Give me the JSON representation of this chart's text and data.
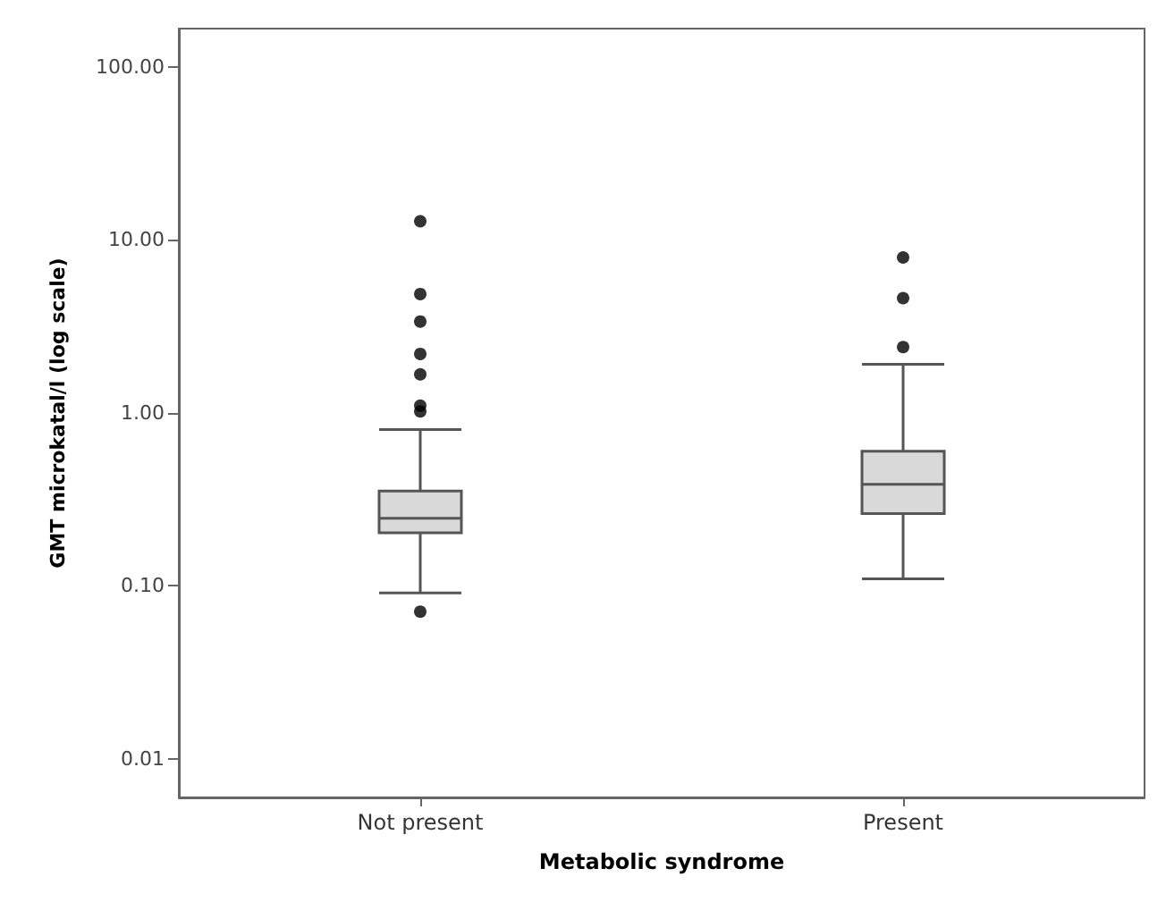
{
  "chart_data": {
    "type": "box",
    "xlabel": "Metabolic syndrome",
    "ylabel": "GMT microkatal/l (log scale)",
    "categories": [
      "Not present",
      "Present"
    ],
    "boxes": [
      {
        "low": 0.091,
        "q1": 0.203,
        "median": 0.246,
        "q3": 0.354,
        "high": 0.8,
        "outliers": [
          0.071,
          1.02,
          1.1,
          1.67,
          2.19,
          3.37,
          4.86,
          12.8
        ]
      },
      {
        "low": 0.11,
        "q1": 0.262,
        "median": 0.387,
        "q3": 0.6,
        "high": 1.91,
        "outliers": [
          2.4,
          4.6,
          7.9
        ]
      }
    ],
    "color": "#d9d9d9",
    "log": "y",
    "ylim": [
      0.006,
      166
    ],
    "yticks": [
      {
        "value": 0.01,
        "label": "0.01"
      },
      {
        "value": 0.1,
        "label": "0.10"
      },
      {
        "value": 1,
        "label": "1.00"
      },
      {
        "value": 10,
        "label": "10.00"
      },
      {
        "value": 100,
        "label": "100.00"
      }
    ],
    "grid": false
  }
}
